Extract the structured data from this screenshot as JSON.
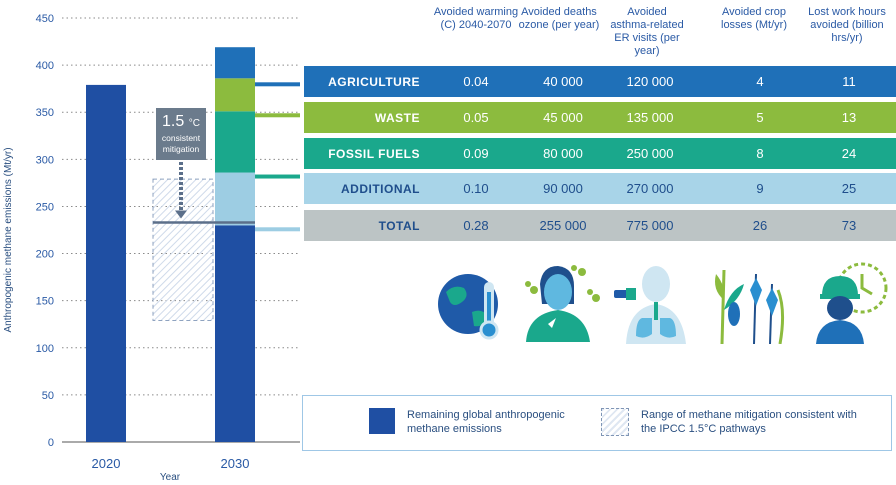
{
  "chart_data": {
    "type": "bar",
    "ylabel": "Anthropogenic methane emissions (Mt/yr)",
    "xlabel": "Year",
    "ylim": [
      0,
      450
    ],
    "yticks": [
      0,
      50,
      100,
      150,
      200,
      250,
      300,
      350,
      400,
      450
    ],
    "grid": "dotted",
    "categories": [
      "2020",
      "2030"
    ],
    "bar_2020": 379,
    "bar_2030_remaining": 230,
    "bar_2030_segments": [
      {
        "name": "ADDITIONAL",
        "from": 230,
        "to": 286,
        "color": "#9dcde3"
      },
      {
        "name": "FOSSIL FUELS",
        "from": 286,
        "to": 351,
        "color": "#1aa88c"
      },
      {
        "name": "WASTE",
        "from": 351,
        "to": 386,
        "color": "#8cbb3e"
      },
      {
        "name": "AGRICULTURE",
        "from": 386,
        "to": 419,
        "color": "#1f70b8"
      }
    ],
    "mitigation_line": 233,
    "mitigation_range": [
      129,
      279
    ],
    "annotation": {
      "value": "1.5",
      "unit": "°C",
      "text": "consistent mitigation"
    }
  },
  "table": {
    "headers": [
      "Avoided warming (C) 2040-2070",
      "Avoided deaths ozone (per year)",
      "Avoided asthma-related ER visits (per year)",
      "Avoided crop losses (Mt/yr)",
      "Lost work hours avoided (billion hrs/yr)"
    ],
    "rows": [
      {
        "label": "AGRICULTURE",
        "values": [
          "0.04",
          "40 000",
          "120 000",
          "4",
          "11"
        ],
        "bg": "#1f70b8",
        "fg": "#ffffff"
      },
      {
        "label": "WASTE",
        "values": [
          "0.05",
          "45 000",
          "135 000",
          "5",
          "13"
        ],
        "bg": "#8cbb3e",
        "fg": "#ffffff"
      },
      {
        "label": "FOSSIL FUELS",
        "values": [
          "0.09",
          "80 000",
          "250 000",
          "8",
          "24"
        ],
        "bg": "#1aa88c",
        "fg": "#ffffff"
      },
      {
        "label": "ADDITIONAL",
        "values": [
          "0.10",
          "90 000",
          "270 000",
          "9",
          "25"
        ],
        "bg": "#a8d4e8",
        "fg": "#1f4e8c"
      },
      {
        "label": "TOTAL",
        "values": [
          "0.28",
          "255 000",
          "775 000",
          "26",
          "73"
        ],
        "bg": "#bcc4c5",
        "fg": "#1f4e8c"
      }
    ]
  },
  "icons": [
    "globe-thermometer-icon",
    "person-coughing-icon",
    "inhaler-lungs-icon",
    "crops-icon",
    "worker-clock-icon"
  ],
  "legend": {
    "remaining": "Remaining global anthropogenic methane emissions",
    "range": "Range of methane mitigation consistent with the IPCC 1.5°C pathways"
  }
}
